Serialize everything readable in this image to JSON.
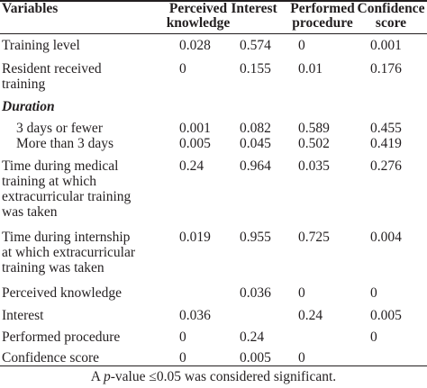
{
  "table": {
    "headers": {
      "variables": "Variables",
      "perceived_knowledge": [
        "Perceived",
        "knowledge"
      ],
      "interest": "Interest",
      "performed_procedure": [
        "Performed",
        "procedure"
      ],
      "confidence_score": [
        "Confidence",
        "score"
      ]
    },
    "rows": [
      {
        "label": [
          "Training level"
        ],
        "values": [
          "0.028",
          "0.574",
          "0",
          "0.001"
        ]
      },
      {
        "label": [
          "Resident received",
          "training"
        ],
        "values": [
          "0",
          "0.155",
          "0.01",
          "0.176"
        ]
      },
      {
        "section": "Duration"
      },
      {
        "label": [
          "3 days or fewer"
        ],
        "indent": true,
        "values": [
          "0.001",
          "0.082",
          "0.589",
          "0.455"
        ]
      },
      {
        "label": [
          "More than 3 days"
        ],
        "indent": true,
        "values": [
          "0.005",
          "0.045",
          "0.502",
          "0.419"
        ]
      },
      {
        "label": [
          "Time during medical",
          "training at which",
          "extracurricular training",
          "was taken"
        ],
        "values": [
          "0.24",
          "0.964",
          "0.035",
          "0.276"
        ]
      },
      {
        "label": [
          "Time during internship",
          "at which extracurricular",
          "training was taken"
        ],
        "values": [
          "0.019",
          "0.955",
          "0.725",
          "0.004"
        ]
      },
      {
        "label": [
          "Perceived knowledge"
        ],
        "values": [
          "",
          "0.036",
          "0",
          "0"
        ]
      },
      {
        "label": [
          "Interest"
        ],
        "values": [
          "0.036",
          "",
          "0.24",
          "0.005"
        ]
      },
      {
        "label": [
          "Performed procedure"
        ],
        "values": [
          "0",
          "0.24",
          "",
          "0"
        ]
      },
      {
        "label": [
          "Confidence score"
        ],
        "values": [
          "0",
          "0.005",
          "0",
          ""
        ]
      }
    ],
    "footnote": {
      "prefix": "A ",
      "p": "p",
      "suffix": "-value ≤0.05 was considered significant."
    }
  }
}
